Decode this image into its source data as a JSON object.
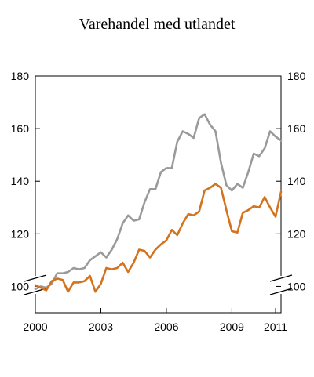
{
  "chart_data": {
    "type": "line",
    "title": "Varehandel med utlandet",
    "xlabel": "",
    "ylabel": "",
    "ylim": [
      90,
      180
    ],
    "y_ticks": [
      "100",
      "120",
      "140",
      "160",
      "180"
    ],
    "x_ticks": [
      "2000",
      "2003",
      "2006",
      "2009",
      "2011"
    ],
    "x_tick_values": [
      2000,
      2003,
      2006,
      2009,
      2011
    ],
    "xlim": [
      2000,
      2011.25
    ],
    "legend": "none",
    "grid": false,
    "axis_break": true,
    "series": [
      {
        "color": "#9a9a9a",
        "x": [
          2000.0,
          2000.25,
          2000.5,
          2000.75,
          2001.0,
          2001.25,
          2001.5,
          2001.75,
          2002.0,
          2002.25,
          2002.5,
          2002.75,
          2003.0,
          2003.25,
          2003.5,
          2003.75,
          2004.0,
          2004.25,
          2004.5,
          2004.75,
          2005.0,
          2005.25,
          2005.5,
          2005.75,
          2006.0,
          2006.25,
          2006.5,
          2006.75,
          2007.0,
          2007.25,
          2007.5,
          2007.75,
          2008.0,
          2008.25,
          2008.5,
          2008.75,
          2009.0,
          2009.25,
          2009.5,
          2009.75,
          2010.0,
          2010.25,
          2010.5,
          2010.75,
          2011.0,
          2011.25
        ],
        "values": [
          99,
          100,
          99.5,
          101,
          105,
          105,
          105.5,
          107,
          106.5,
          107,
          110,
          111.5,
          113,
          111,
          114,
          118,
          124,
          127,
          125,
          125.5,
          132,
          137,
          137,
          143.5,
          145,
          145,
          155,
          159,
          158,
          156.5,
          164,
          165.5,
          161.5,
          159,
          147,
          138.5,
          136.5,
          139,
          137.5,
          143.5,
          150.5,
          149.5,
          152.5,
          159,
          157,
          155.5
        ]
      },
      {
        "color": "#d4731e",
        "x": [
          2000.0,
          2000.25,
          2000.5,
          2000.75,
          2001.0,
          2001.25,
          2001.5,
          2001.75,
          2002.0,
          2002.25,
          2002.5,
          2002.75,
          2003.0,
          2003.25,
          2003.5,
          2003.75,
          2004.0,
          2004.25,
          2004.5,
          2004.75,
          2005.0,
          2005.25,
          2005.5,
          2005.75,
          2006.0,
          2006.25,
          2006.5,
          2006.75,
          2007.0,
          2007.25,
          2007.5,
          2007.75,
          2008.0,
          2008.25,
          2008.5,
          2008.75,
          2009.0,
          2009.25,
          2009.5,
          2009.75,
          2010.0,
          2010.25,
          2010.5,
          2010.75,
          2011.0,
          2011.25
        ],
        "values": [
          100.5,
          99.5,
          98.5,
          102,
          103,
          102.5,
          98,
          101.5,
          101.5,
          102,
          104,
          98,
          101,
          107,
          106.5,
          107,
          109,
          105.5,
          109,
          114,
          113.5,
          111,
          114,
          116,
          117.5,
          121.5,
          119.5,
          124,
          127.5,
          127,
          128.5,
          136.5,
          137.5,
          139,
          137.5,
          129,
          121,
          120.5,
          128,
          129,
          130.5,
          130,
          134,
          130,
          126.5,
          136
        ]
      }
    ]
  }
}
